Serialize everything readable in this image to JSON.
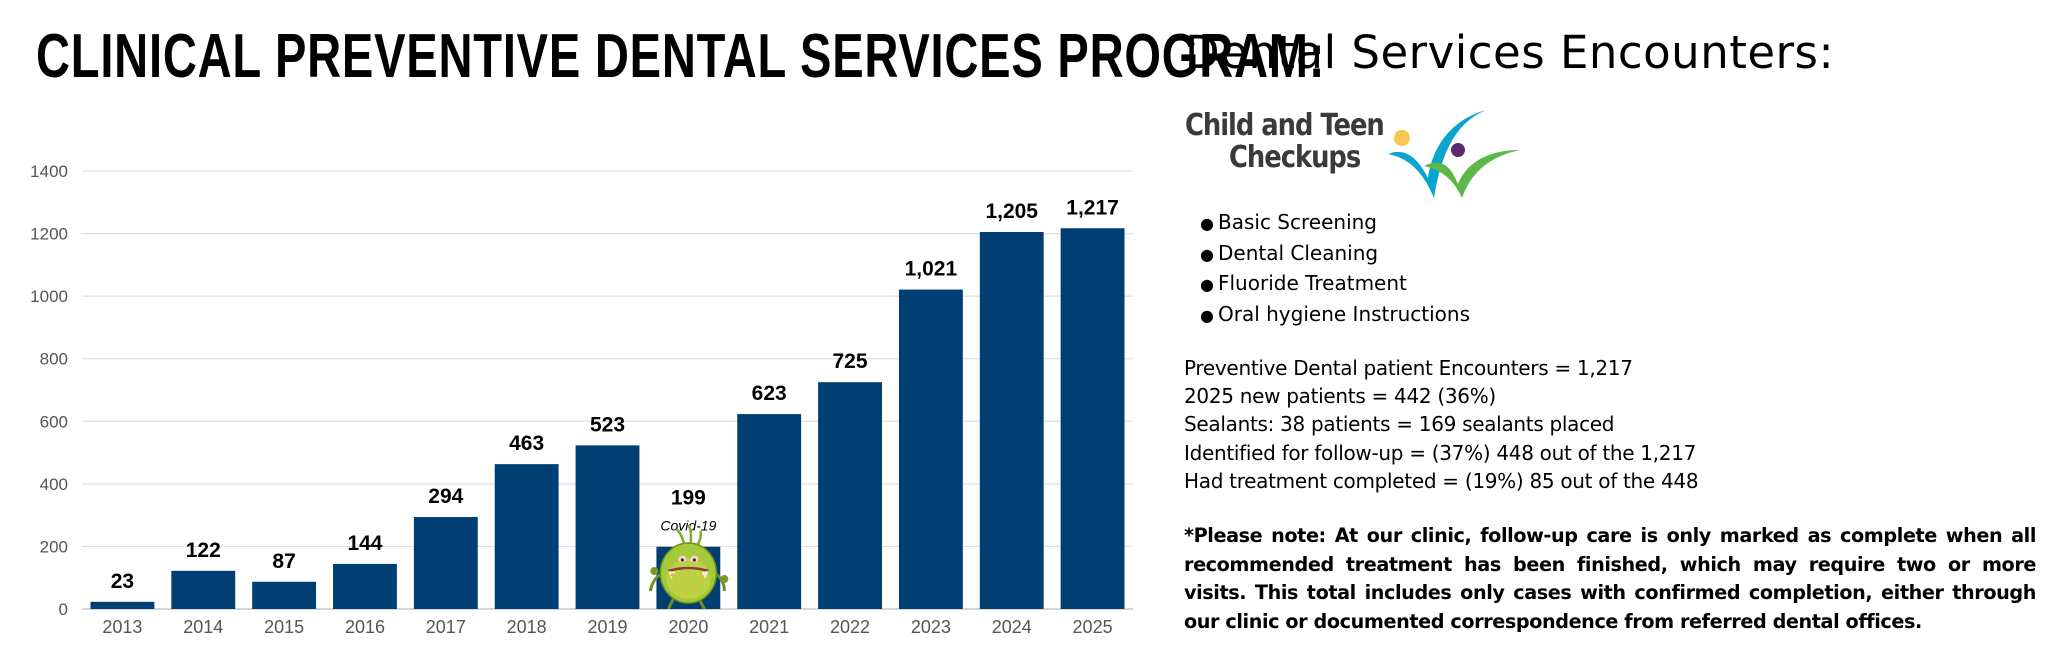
{
  "header": {
    "title": "CLINICAL PREVENTIVE DENTAL SERVICES PROGRAM:"
  },
  "side_panel": {
    "title": "Dental Services Encounters:",
    "logo": {
      "line1": "Child and Teen",
      "line2": "Checkups",
      "colors": {
        "yellow": "#F9C74F",
        "blue": "#0AA5CF",
        "purple": "#5E2A6E",
        "green": "#5DB848",
        "text": "#3A3A3C"
      }
    },
    "services": [
      {
        "label": "Basic Screening"
      },
      {
        "label": "Dental Cleaning"
      },
      {
        "label": "Fluoride Treatment"
      },
      {
        "label": "Oral hygiene Instructions"
      }
    ],
    "stats": [
      "Preventive Dental patient Encounters = 1,217",
      "2025 new patients = 442 (36%)",
      "Sealants: 38 patients = 169 sealants placed",
      "Identified for follow-up = (37%) 448 out of the 1,217",
      "Had treatment completed = (19%) 85 out of the 448"
    ],
    "note": "*Please note: At our clinic, follow-up care is only marked as complete when all recommended treatment has been finished, which may require two or more visits. This total includes only cases with confirmed completion, either through our clinic or documented correspondence from referred dental offices."
  },
  "chart_data": {
    "type": "bar",
    "title": "",
    "xlabel": "",
    "ylabel": "",
    "categories": [
      "2013",
      "2014",
      "2015",
      "2016",
      "2017",
      "2018",
      "2019",
      "2020",
      "2021",
      "2022",
      "2023",
      "2024",
      "2025"
    ],
    "values": [
      23,
      122,
      87,
      144,
      294,
      463,
      523,
      199,
      623,
      725,
      1021,
      1205,
      1217
    ],
    "data_labels": [
      "23",
      "122",
      "87",
      "144",
      "294",
      "463",
      "523",
      "199",
      "623",
      "725",
      "1,021",
      "1,205",
      "1,217"
    ],
    "ylim": [
      0,
      1400
    ],
    "yticks": [
      0,
      200,
      400,
      600,
      800,
      1000,
      1200,
      1400
    ],
    "ytick_labels": [
      "0",
      "200",
      "400",
      "600",
      "800",
      "1000",
      "1200",
      "1400"
    ],
    "grid": true,
    "legend": "none",
    "bar_color": "#003F73",
    "annotations": [
      {
        "category": "2020",
        "text": "Covid-19",
        "icon": "virus-mascot-icon"
      }
    ]
  }
}
